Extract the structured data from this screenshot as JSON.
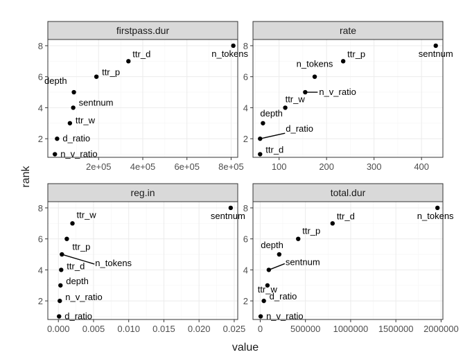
{
  "chart_data": {
    "type": "scatter",
    "xlabel": "value",
    "ylabel": "rank",
    "ylim": [
      0.8,
      8.4
    ],
    "y_ticks": [
      2,
      4,
      6,
      8
    ],
    "grid": true,
    "panels": [
      {
        "title": "firstpass.dur",
        "xlim": [
          -30000,
          830000
        ],
        "x_ticks": [
          200000,
          400000,
          600000,
          800000
        ],
        "x_tick_labels": [
          "2e+05",
          "4e+05",
          "6e+05",
          "8e+05"
        ],
        "points": [
          {
            "label": "n_v_ratio",
            "x": 2000,
            "y": 1
          },
          {
            "label": "d_ratio",
            "x": 12000,
            "y": 2
          },
          {
            "label": "ttr_w",
            "x": 70000,
            "y": 3
          },
          {
            "label": "sentnum",
            "x": 85000,
            "y": 4
          },
          {
            "label": "depth",
            "x": 88000,
            "y": 5
          },
          {
            "label": "ttr_p",
            "x": 190000,
            "y": 6
          },
          {
            "label": "ttr_d",
            "x": 335000,
            "y": 7
          },
          {
            "label": "n_tokens",
            "x": 810000,
            "y": 8
          }
        ]
      },
      {
        "title": "rate",
        "xlim": [
          45,
          445
        ],
        "x_ticks": [
          100,
          200,
          300,
          400
        ],
        "x_tick_labels": [
          "100",
          "200",
          "300",
          "400"
        ],
        "points": [
          {
            "label": "ttr_d",
            "x": 60,
            "y": 1
          },
          {
            "label": "d_ratio",
            "x": 60,
            "y": 2
          },
          {
            "label": "depth",
            "x": 66,
            "y": 3
          },
          {
            "label": "ttr_w",
            "x": 113,
            "y": 4
          },
          {
            "label": "n_v_ratio",
            "x": 155,
            "y": 5
          },
          {
            "label": "n_tokens",
            "x": 175,
            "y": 6
          },
          {
            "label": "ttr_p",
            "x": 235,
            "y": 7
          },
          {
            "label": "sentnum",
            "x": 430,
            "y": 8
          }
        ]
      },
      {
        "title": "reg.in",
        "xlim": [
          -0.0015,
          0.0255
        ],
        "x_ticks": [
          0,
          0.005,
          0.01,
          0.015,
          0.02,
          0.025
        ],
        "x_tick_labels": [
          "0.000",
          "0.005",
          "0.010",
          "0.015",
          "0.020",
          "0.025"
        ],
        "points": [
          {
            "label": "d_ratio",
            "x": 0.0001,
            "y": 1
          },
          {
            "label": "n_v_ratio",
            "x": 0.0002,
            "y": 2
          },
          {
            "label": "depth",
            "x": 0.0003,
            "y": 3
          },
          {
            "label": "ttr_d",
            "x": 0.0004,
            "y": 4
          },
          {
            "label": "n_tokens",
            "x": 0.0005,
            "y": 5
          },
          {
            "label": "ttr_p",
            "x": 0.0012,
            "y": 6
          },
          {
            "label": "ttr_w",
            "x": 0.002,
            "y": 7
          },
          {
            "label": "sentnum",
            "x": 0.0245,
            "y": 8
          }
        ]
      },
      {
        "title": "total.dur",
        "xlim": [
          -80000,
          2020000
        ],
        "x_ticks": [
          0,
          500000,
          1000000,
          1500000,
          2000000
        ],
        "x_tick_labels": [
          "0",
          "500000",
          "1000000",
          "1500000",
          "2000000"
        ],
        "points": [
          {
            "label": "n_v_ratio",
            "x": 5000,
            "y": 1
          },
          {
            "label": "d_ratio",
            "x": 40000,
            "y": 2
          },
          {
            "label": "ttr_w",
            "x": 80000,
            "y": 3
          },
          {
            "label": "sentnum",
            "x": 95000,
            "y": 4
          },
          {
            "label": "depth",
            "x": 210000,
            "y": 5
          },
          {
            "label": "ttr_p",
            "x": 420000,
            "y": 6
          },
          {
            "label": "ttr_d",
            "x": 800000,
            "y": 7
          },
          {
            "label": "n_tokens",
            "x": 1960000,
            "y": 8
          }
        ]
      }
    ]
  }
}
